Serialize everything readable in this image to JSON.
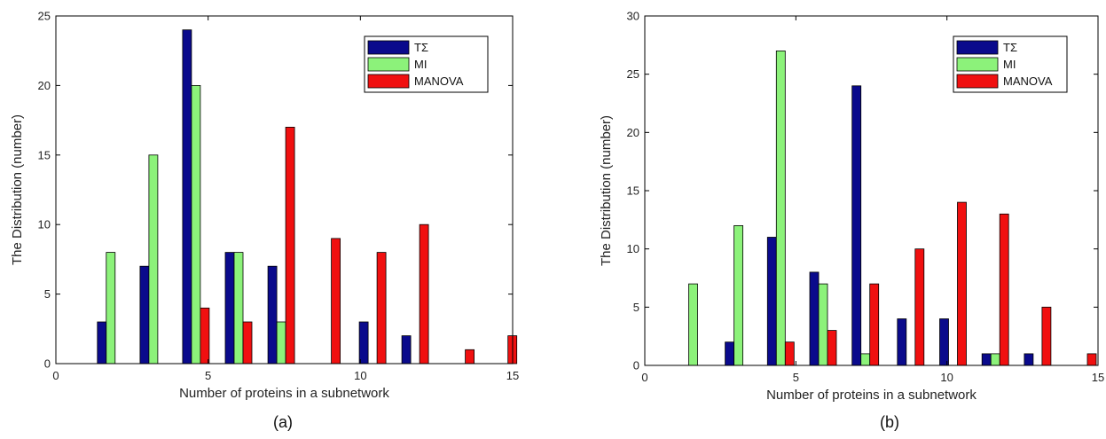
{
  "chart_data": [
    {
      "type": "bar",
      "caption": "(a)",
      "xlabel": "Number of proteins in a subnetwork",
      "ylabel": "The Distribution (number)",
      "xlim": [
        0,
        15
      ],
      "ylim": [
        0,
        25
      ],
      "xticks": [
        0,
        5,
        10,
        15
      ],
      "yticks": [
        0,
        5,
        10,
        15,
        20,
        25
      ],
      "grid": false,
      "legend_position": "top-right",
      "groups_x": [
        1.8,
        3.2,
        4.6,
        6.0,
        7.4,
        8.9,
        10.4,
        11.8,
        13.3,
        14.7
      ],
      "series": [
        {
          "name": "TΣ",
          "color": "#0a0a8c",
          "values": [
            3,
            7,
            24,
            8,
            7,
            0,
            3,
            2,
            0,
            0
          ]
        },
        {
          "name": "MI",
          "color": "#8cf27a",
          "values": [
            8,
            15,
            20,
            8,
            3,
            0,
            0,
            0,
            0,
            0
          ]
        },
        {
          "name": "MANOVA",
          "color": "#f01010",
          "values": [
            0,
            0,
            4,
            3,
            17,
            9,
            8,
            10,
            1,
            2
          ]
        }
      ]
    },
    {
      "type": "bar",
      "caption": "(b)",
      "xlabel": "Number of proteins in a subnetwork",
      "ylabel": "The Distribution (number)",
      "xlim": [
        0,
        15
      ],
      "ylim": [
        0,
        30
      ],
      "xticks": [
        0,
        5,
        10,
        15
      ],
      "yticks": [
        0,
        5,
        10,
        15,
        20,
        25,
        30
      ],
      "grid": false,
      "legend_position": "top-right",
      "groups_x": [
        1.6,
        3.1,
        4.5,
        5.9,
        7.3,
        8.8,
        10.2,
        11.6,
        13.0,
        14.5
      ],
      "series": [
        {
          "name": "TΣ",
          "color": "#0a0a8c",
          "values": [
            0,
            2,
            11,
            8,
            24,
            4,
            4,
            1,
            1,
            0
          ]
        },
        {
          "name": "MI",
          "color": "#8cf27a",
          "values": [
            7,
            12,
            27,
            7,
            1,
            0,
            0,
            1,
            0,
            0
          ]
        },
        {
          "name": "MANOVA",
          "color": "#f01010",
          "values": [
            0,
            0,
            2,
            3,
            7,
            10,
            14,
            13,
            5,
            1
          ]
        }
      ]
    }
  ]
}
